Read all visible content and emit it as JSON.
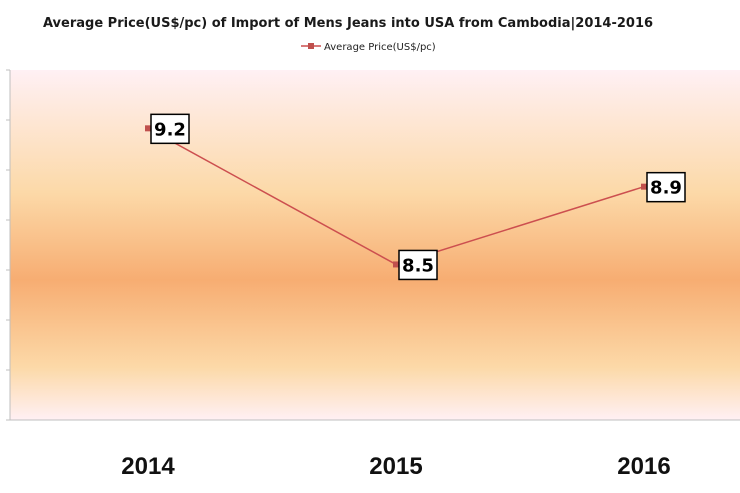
{
  "chart_data": {
    "type": "line",
    "title": "Average Price(US$/pc) of Import of Mens Jeans into USA from Cambodia|2014-2016",
    "categories": [
      "2014",
      "2015",
      "2016"
    ],
    "series": [
      {
        "name": "Average Price(US$/pc)",
        "values": [
          9.2,
          8.5,
          8.9
        ],
        "labels": [
          "9.2",
          "8.5",
          "8.9"
        ]
      }
    ],
    "xlabel": "",
    "ylabel": "",
    "ylim": [
      7.7,
      9.5
    ],
    "grid": false,
    "legend": "top-center",
    "colors": {
      "line": "#cc4f4f",
      "marker": "#c0504d",
      "axis": "#bfbfbf",
      "band_center": "#f7ad72",
      "band_mid": "#fcd9a8",
      "band_edge": "#fff0f4"
    }
  }
}
